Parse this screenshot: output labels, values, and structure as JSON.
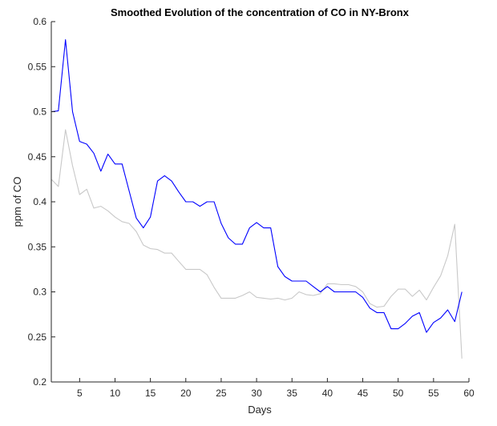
{
  "chart_data": {
    "type": "line",
    "title": "Smoothed Evolution of the concentration of CO in NY-Bronx",
    "xlabel": "Days",
    "ylabel": "ppm of CO",
    "xlim": [
      1,
      60
    ],
    "ylim": [
      0.2,
      0.6
    ],
    "xticks": [
      5,
      10,
      15,
      20,
      25,
      30,
      35,
      40,
      45,
      50,
      55,
      60
    ],
    "yticks": [
      0.2,
      0.25,
      0.3,
      0.35,
      0.4,
      0.45,
      0.5,
      0.55,
      0.6
    ],
    "xtick_labels": [
      "5",
      "10",
      "15",
      "20",
      "25",
      "30",
      "35",
      "40",
      "45",
      "50",
      "55",
      "60"
    ],
    "ytick_labels": [
      "0.2",
      "0.25",
      "0.3",
      "0.35",
      "0.4",
      "0.45",
      "0.5",
      "0.55",
      "0.6"
    ],
    "grid": false,
    "series": [
      {
        "color": "#c8c8c8",
        "x": [
          1,
          2,
          3,
          4,
          5,
          6,
          7,
          8,
          9,
          10,
          11,
          12,
          13,
          14,
          15,
          16,
          17,
          18,
          19,
          20,
          21,
          22,
          23,
          24,
          25,
          26,
          27,
          28,
          29,
          30,
          31,
          32,
          33,
          34,
          35,
          36,
          37,
          38,
          39,
          40,
          41,
          42,
          43,
          44,
          45,
          46,
          47,
          48,
          49,
          50,
          51,
          52,
          53,
          54,
          55,
          56,
          57,
          58,
          59
        ],
        "values": [
          0.425,
          0.417,
          0.48,
          0.44,
          0.408,
          0.414,
          0.393,
          0.395,
          0.39,
          0.383,
          0.378,
          0.376,
          0.367,
          0.352,
          0.348,
          0.347,
          0.343,
          0.343,
          0.334,
          0.325,
          0.325,
          0.325,
          0.319,
          0.305,
          0.293,
          0.293,
          0.293,
          0.296,
          0.3,
          0.294,
          0.293,
          0.292,
          0.293,
          0.291,
          0.293,
          0.3,
          0.297,
          0.296,
          0.298,
          0.309,
          0.309,
          0.308,
          0.308,
          0.306,
          0.3,
          0.287,
          0.283,
          0.284,
          0.295,
          0.303,
          0.303,
          0.295,
          0.302,
          0.291,
          0.305,
          0.318,
          0.34,
          0.375,
          0.226
        ]
      },
      {
        "color": "#0000ff",
        "x": [
          1,
          2,
          3,
          4,
          5,
          6,
          7,
          8,
          9,
          10,
          11,
          12,
          13,
          14,
          15,
          16,
          17,
          18,
          19,
          20,
          21,
          22,
          23,
          24,
          25,
          26,
          27,
          28,
          29,
          30,
          31,
          32,
          33,
          34,
          35,
          36,
          37,
          38,
          39,
          40,
          41,
          42,
          43,
          44,
          45,
          46,
          47,
          48,
          49,
          50,
          51,
          52,
          53,
          54,
          55,
          56,
          57,
          58,
          59
        ],
        "values": [
          0.5,
          0.501,
          0.58,
          0.5,
          0.467,
          0.464,
          0.454,
          0.434,
          0.453,
          0.442,
          0.442,
          0.412,
          0.382,
          0.371,
          0.383,
          0.423,
          0.429,
          0.423,
          0.411,
          0.4,
          0.4,
          0.395,
          0.4,
          0.4,
          0.376,
          0.36,
          0.353,
          0.353,
          0.371,
          0.377,
          0.371,
          0.371,
          0.328,
          0.317,
          0.312,
          0.312,
          0.312,
          0.306,
          0.3,
          0.306,
          0.3,
          0.3,
          0.3,
          0.3,
          0.294,
          0.282,
          0.277,
          0.277,
          0.259,
          0.259,
          0.265,
          0.273,
          0.277,
          0.255,
          0.266,
          0.271,
          0.28,
          0.267,
          0.3
        ]
      }
    ]
  }
}
